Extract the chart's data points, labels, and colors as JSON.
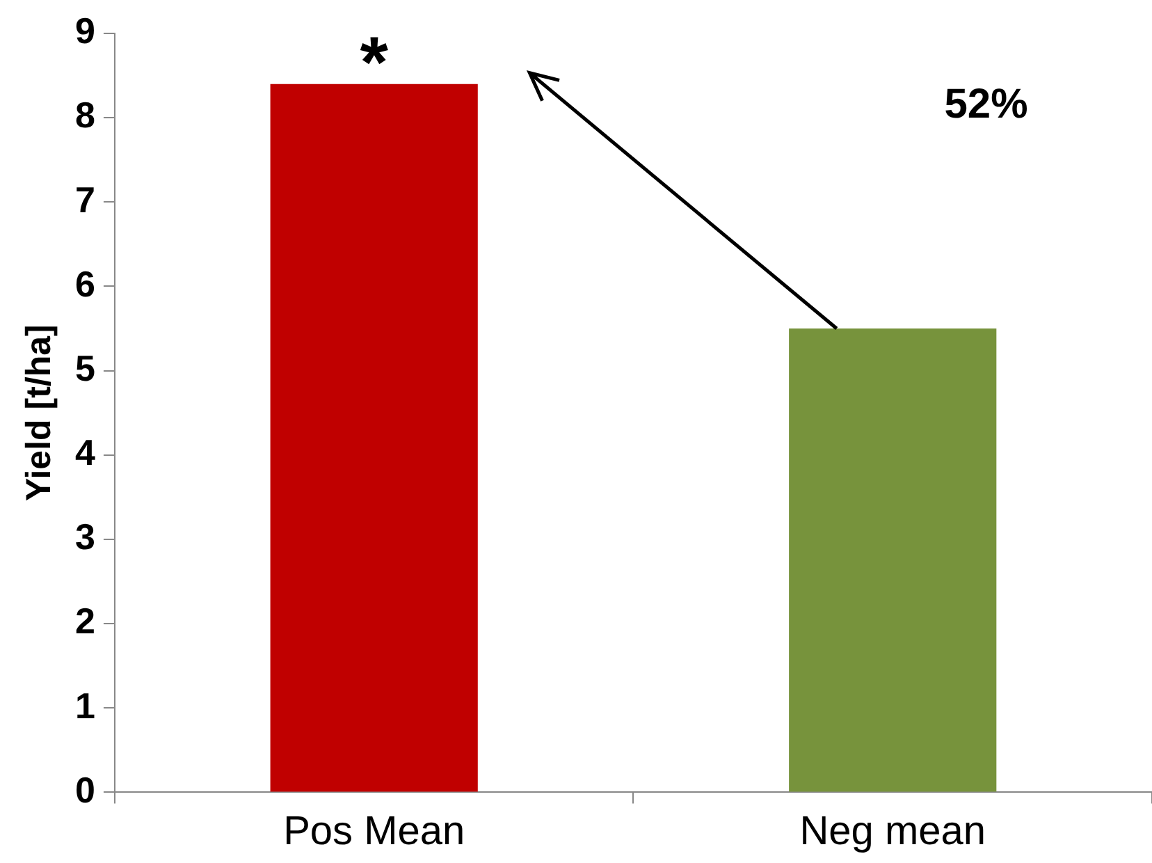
{
  "chart_data": {
    "type": "bar",
    "ylabel": "Yield [t/ha]",
    "categories": [
      "Pos Mean",
      "Neg mean"
    ],
    "values": [
      8.4,
      5.5
    ],
    "colors": [
      "#c00000",
      "#77933c"
    ],
    "ylim": [
      0,
      9
    ],
    "yticks": [
      0,
      1,
      2,
      3,
      4,
      5,
      6,
      7,
      8,
      9
    ],
    "grid": false,
    "legend": false,
    "annotations": [
      {
        "text": "*",
        "x": "Pos Mean",
        "y": 8.4
      },
      "52%"
    ]
  }
}
